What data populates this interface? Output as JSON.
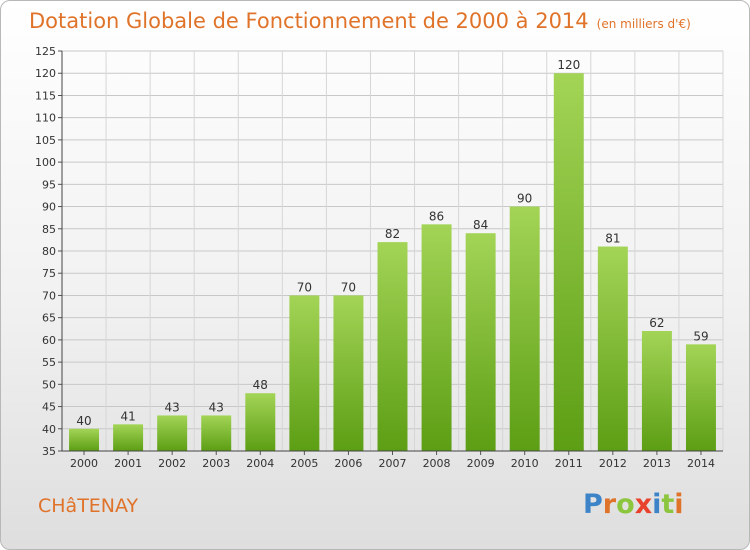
{
  "header": {
    "title": "Dotation Globale de Fonctionnement de 2000 à 2014",
    "unit": "(en milliers d'€)"
  },
  "footer": {
    "commune": "CHâTENAY",
    "logo": "Proxiti"
  },
  "colors": {
    "accent": "#e0732a",
    "bar_top": "#a3d456",
    "bar_bottom": "#5c9e14",
    "logo_letters": [
      "#3c83c8",
      "#e0732a",
      "#8cc63e",
      "#e8412c",
      "#3c83c8",
      "#8cc63e",
      "#e0732a"
    ]
  },
  "chart_data": {
    "type": "bar",
    "title": "Dotation Globale de Fonctionnement de 2000 à 2014",
    "subtitle": "(en milliers d'€)",
    "xlabel": "",
    "ylabel": "",
    "ylim": [
      35,
      125
    ],
    "yticks": [
      35,
      40,
      45,
      50,
      55,
      60,
      65,
      70,
      75,
      80,
      85,
      90,
      95,
      100,
      105,
      110,
      115,
      120,
      125
    ],
    "grid": true,
    "categories": [
      "2000",
      "2001",
      "2002",
      "2003",
      "2004",
      "2005",
      "2006",
      "2007",
      "2008",
      "2009",
      "2010",
      "2011",
      "2012",
      "2013",
      "2014"
    ],
    "values": [
      40,
      41,
      43,
      43,
      48,
      70,
      70,
      82,
      86,
      84,
      90,
      120,
      81,
      62,
      59
    ],
    "data_labels": [
      "40",
      "41",
      "43",
      "43",
      "48",
      "70",
      "70",
      "82",
      "86",
      "84",
      "90",
      "120",
      "81",
      "62",
      "59"
    ]
  }
}
